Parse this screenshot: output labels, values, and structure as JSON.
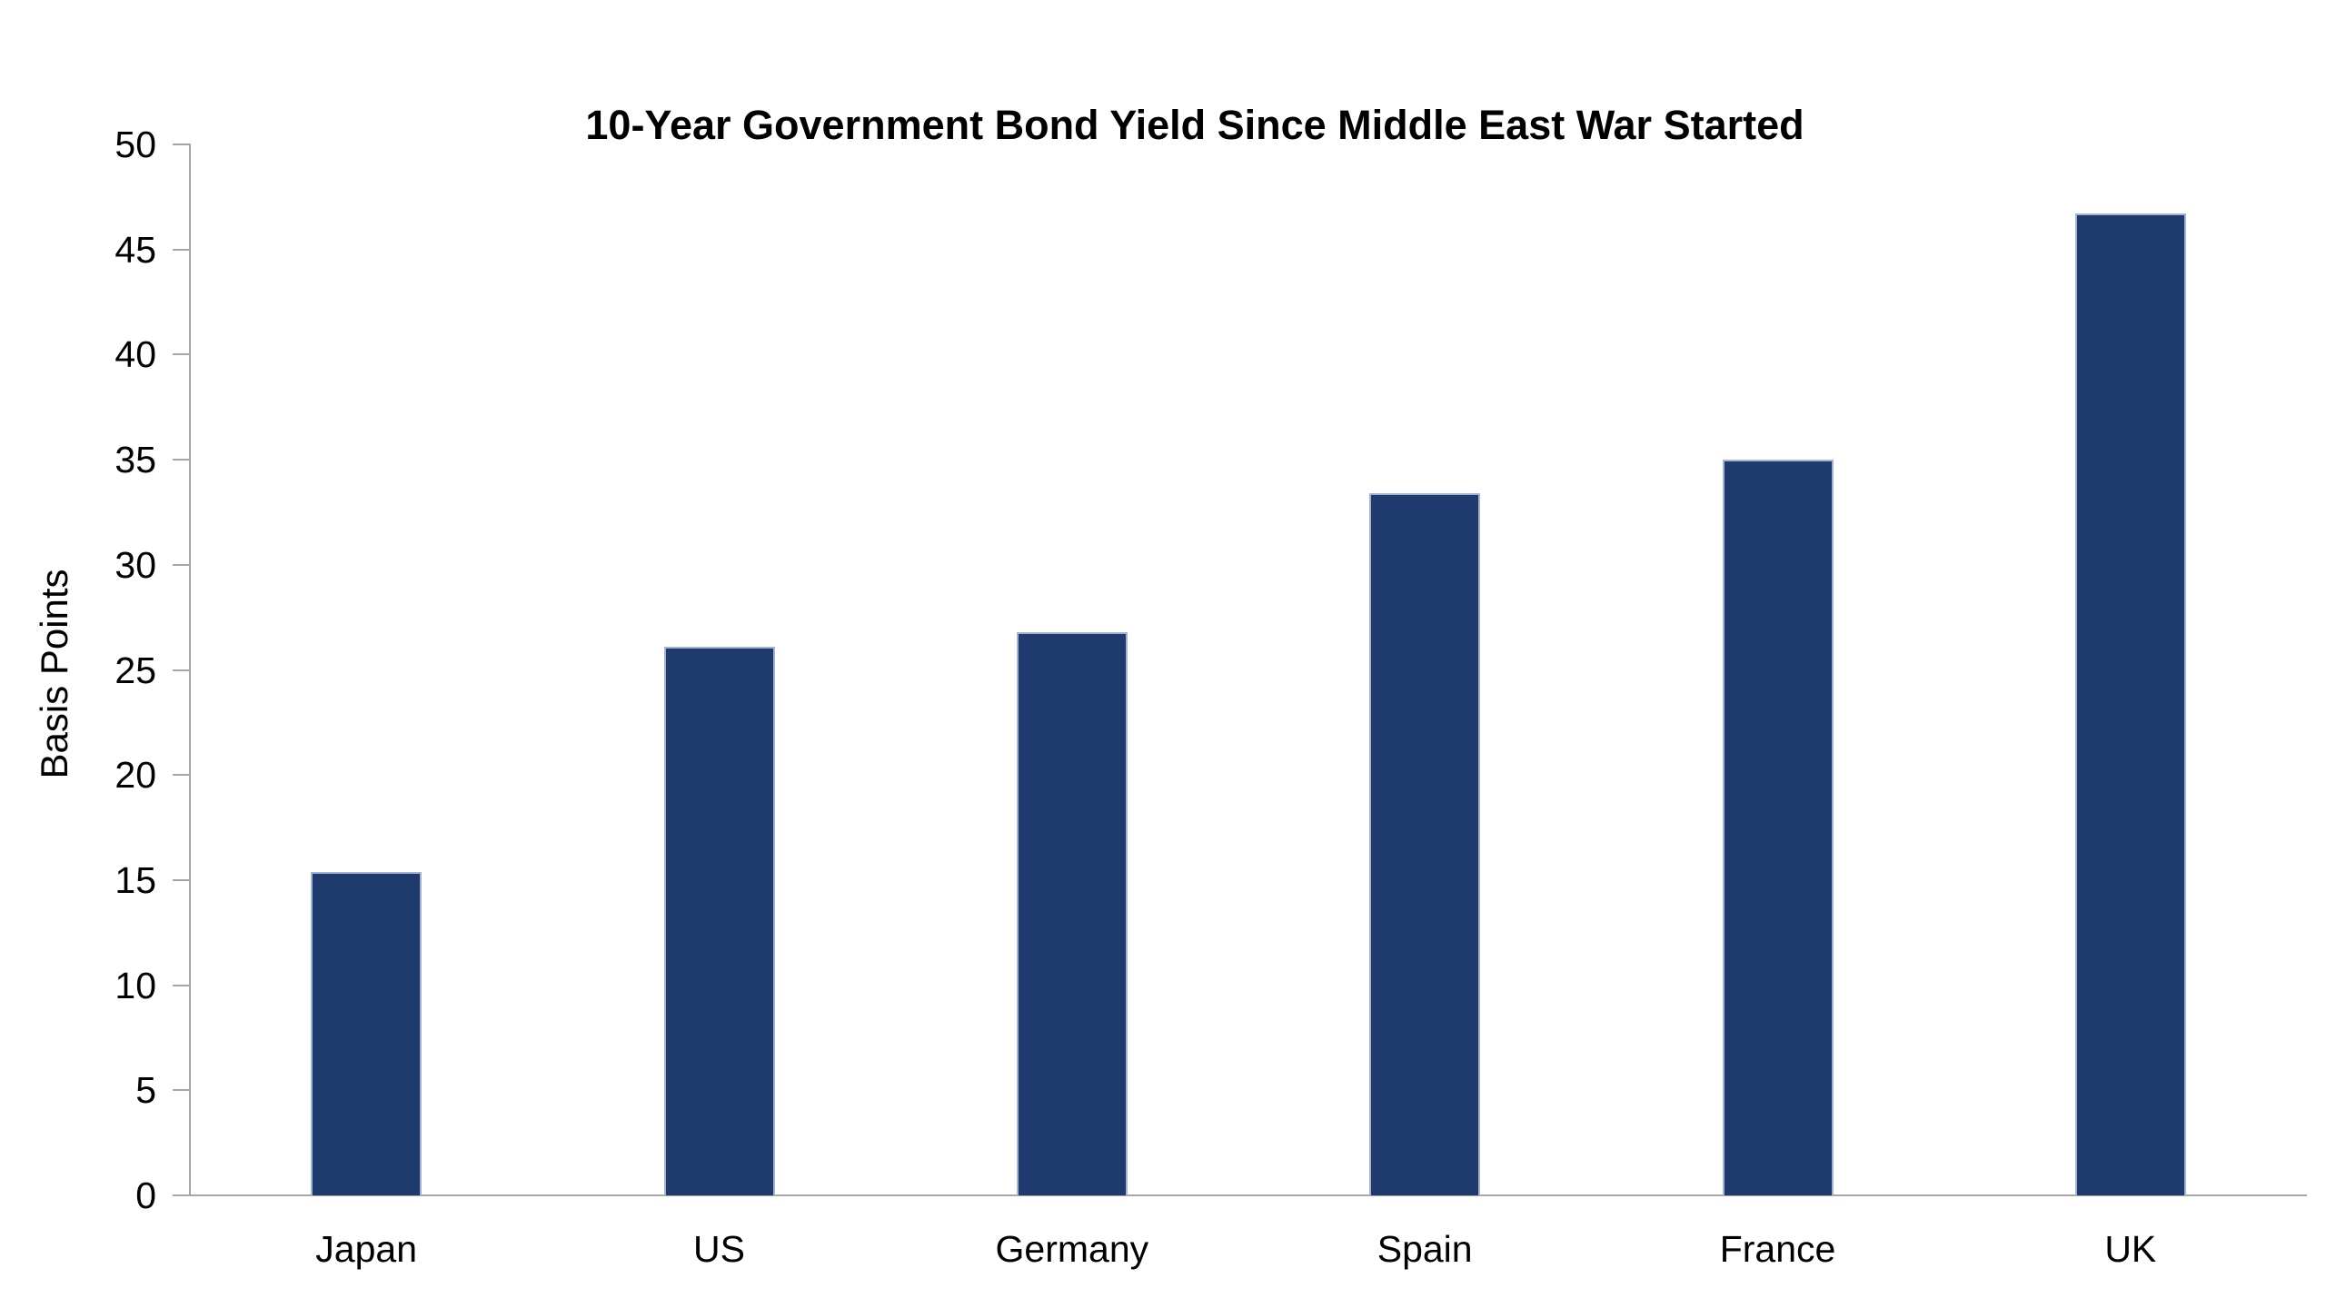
{
  "chart_data": {
    "type": "bar",
    "title": "10-Year Government Bond Yield Since Middle East War Started",
    "xlabel": "",
    "ylabel": "Basis Points",
    "categories": [
      "Japan",
      "US",
      "Germany",
      "Spain",
      "France",
      "UK"
    ],
    "values": [
      15.4,
      26.1,
      26.8,
      33.4,
      35.0,
      46.7
    ],
    "ylim": [
      0,
      50
    ],
    "yticks": [
      0,
      5,
      10,
      15,
      20,
      25,
      30,
      35,
      40,
      45,
      50
    ],
    "grid": false,
    "legend": "none",
    "colors": {
      "bar_fill": "#1F3B6D",
      "bar_edge": "#A3B3D2",
      "axis_line": "#A6A6A6",
      "text": "#000000",
      "background": "#FFFFFF"
    }
  }
}
